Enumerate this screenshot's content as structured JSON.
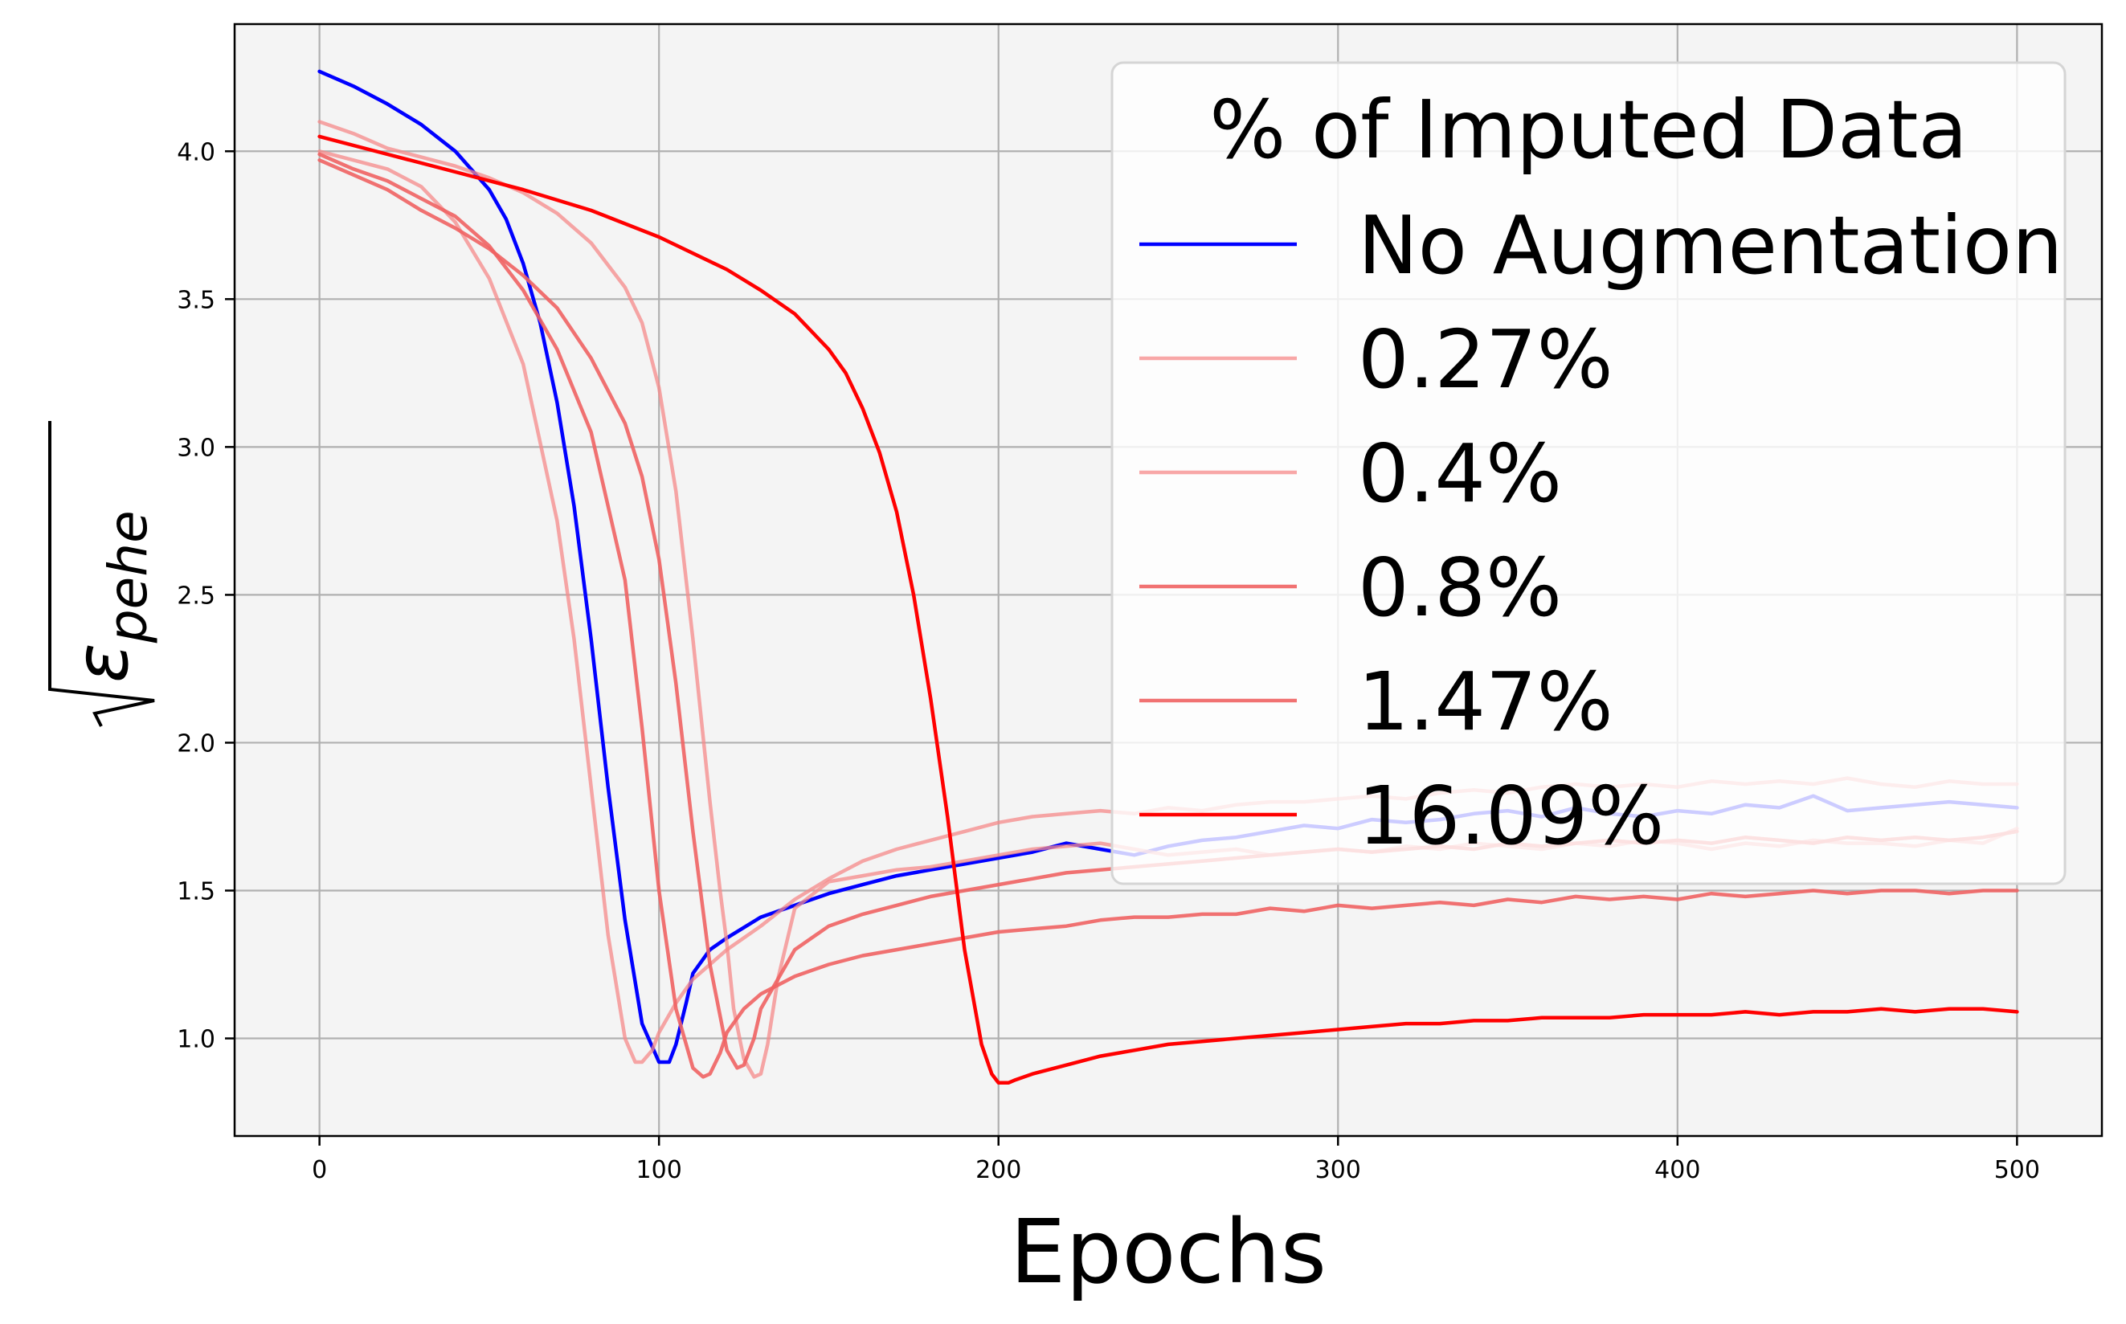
{
  "chart_data": {
    "type": "line",
    "title": "",
    "xlabel": "Epochs",
    "ylabel": "√ε pehe",
    "ylabel_parts": {
      "symbol": "ε",
      "subscript": "pehe"
    },
    "xlim": [
      -25,
      525
    ],
    "ylim": [
      0.67,
      4.43
    ],
    "xticks": [
      0,
      100,
      200,
      300,
      400,
      500
    ],
    "xtick_labels": [
      "0",
      "100",
      "200",
      "300",
      "400",
      "500"
    ],
    "yticks": [
      1.0,
      1.5,
      2.0,
      2.5,
      3.0,
      3.5,
      4.0
    ],
    "ytick_labels": [
      "1.0",
      "1.5",
      "2.0",
      "2.5",
      "3.0",
      "3.5",
      "4.0"
    ],
    "grid": true,
    "legend": {
      "title": "% of Imputed Data",
      "placement": "top-right"
    },
    "background_color": "#f4f4f4",
    "series": [
      {
        "name": "No Augmentation",
        "color": "#0000ff",
        "opacity": 1.0,
        "x": [
          0,
          10,
          20,
          30,
          40,
          50,
          55,
          60,
          65,
          70,
          75,
          80,
          85,
          90,
          95,
          100,
          103,
          105,
          108,
          110,
          115,
          120,
          130,
          140,
          150,
          160,
          170,
          180,
          185,
          190,
          200,
          210,
          220,
          230,
          240,
          250,
          260,
          270,
          280,
          290,
          300,
          310,
          320,
          330,
          340,
          350,
          360,
          370,
          380,
          390,
          400,
          410,
          420,
          430,
          440,
          450,
          460,
          470,
          480,
          490,
          500
        ],
        "y": [
          4.27,
          4.22,
          4.16,
          4.09,
          4.0,
          3.87,
          3.77,
          3.62,
          3.42,
          3.15,
          2.8,
          2.35,
          1.85,
          1.4,
          1.05,
          0.92,
          0.92,
          0.98,
          1.12,
          1.22,
          1.3,
          1.34,
          1.41,
          1.45,
          1.49,
          1.52,
          1.55,
          1.57,
          1.58,
          1.59,
          1.61,
          1.63,
          1.66,
          1.64,
          1.62,
          1.65,
          1.67,
          1.68,
          1.7,
          1.72,
          1.71,
          1.74,
          1.73,
          1.74,
          1.76,
          1.77,
          1.75,
          1.78,
          1.76,
          1.75,
          1.77,
          1.76,
          1.79,
          1.78,
          1.82,
          1.77,
          1.78,
          1.79,
          1.8,
          1.79,
          1.78
        ]
      },
      {
        "name": "0.27%",
        "color": "#f58a8a",
        "opacity": 0.75,
        "x": [
          0,
          10,
          20,
          30,
          40,
          50,
          60,
          70,
          75,
          80,
          85,
          90,
          93,
          95,
          98,
          100,
          105,
          110,
          115,
          120,
          130,
          140,
          150,
          160,
          170,
          180,
          190,
          200,
          210,
          220,
          230,
          240,
          250,
          260,
          270,
          280,
          290,
          300,
          310,
          320,
          330,
          340,
          350,
          360,
          370,
          380,
          390,
          400,
          410,
          420,
          430,
          440,
          450,
          460,
          470,
          480,
          490,
          500
        ],
        "y": [
          4.0,
          3.97,
          3.94,
          3.88,
          3.76,
          3.57,
          3.28,
          2.75,
          2.35,
          1.85,
          1.35,
          1.0,
          0.92,
          0.92,
          0.96,
          1.02,
          1.12,
          1.2,
          1.25,
          1.3,
          1.38,
          1.47,
          1.54,
          1.6,
          1.64,
          1.67,
          1.7,
          1.73,
          1.75,
          1.76,
          1.77,
          1.76,
          1.78,
          1.77,
          1.79,
          1.8,
          1.8,
          1.81,
          1.82,
          1.81,
          1.83,
          1.84,
          1.83,
          1.85,
          1.86,
          1.85,
          1.86,
          1.85,
          1.87,
          1.86,
          1.87,
          1.86,
          1.88,
          1.86,
          1.85,
          1.87,
          1.86,
          1.86
        ]
      },
      {
        "name": "0.4%",
        "color": "#f58a8a",
        "opacity": 0.75,
        "x": [
          0,
          10,
          20,
          30,
          40,
          50,
          60,
          70,
          80,
          90,
          95,
          100,
          105,
          110,
          115,
          118,
          120,
          122,
          125,
          128,
          130,
          132,
          135,
          140,
          150,
          160,
          170,
          180,
          190,
          200,
          210,
          220,
          230,
          240,
          250,
          260,
          270,
          280,
          290,
          300,
          310,
          320,
          330,
          340,
          350,
          360,
          370,
          380,
          390,
          400,
          410,
          420,
          430,
          440,
          450,
          460,
          470,
          480,
          490,
          500
        ],
        "y": [
          4.1,
          4.06,
          4.01,
          3.98,
          3.95,
          3.91,
          3.86,
          3.79,
          3.69,
          3.54,
          3.42,
          3.2,
          2.85,
          2.35,
          1.8,
          1.5,
          1.32,
          1.1,
          0.93,
          0.87,
          0.88,
          0.98,
          1.2,
          1.44,
          1.53,
          1.55,
          1.57,
          1.58,
          1.6,
          1.62,
          1.64,
          1.65,
          1.66,
          1.64,
          1.62,
          1.63,
          1.64,
          1.62,
          1.63,
          1.64,
          1.63,
          1.65,
          1.64,
          1.66,
          1.65,
          1.64,
          1.66,
          1.65,
          1.67,
          1.66,
          1.64,
          1.66,
          1.65,
          1.67,
          1.66,
          1.66,
          1.65,
          1.67,
          1.66,
          1.71
        ]
      },
      {
        "name": "0.8%",
        "color": "#ef6363",
        "opacity": 0.9,
        "x": [
          0,
          10,
          20,
          30,
          40,
          50,
          60,
          70,
          80,
          90,
          95,
          100,
          105,
          110,
          113,
          115,
          118,
          120,
          125,
          130,
          140,
          150,
          160,
          170,
          180,
          190,
          200,
          210,
          220,
          230,
          240,
          250,
          260,
          270,
          280,
          290,
          300,
          310,
          320,
          330,
          340,
          350,
          360,
          370,
          380,
          390,
          400,
          410,
          420,
          430,
          440,
          450,
          460,
          470,
          480,
          490,
          500
        ],
        "y": [
          3.99,
          3.94,
          3.9,
          3.84,
          3.78,
          3.68,
          3.53,
          3.33,
          3.05,
          2.55,
          2.05,
          1.5,
          1.1,
          0.9,
          0.87,
          0.88,
          0.95,
          1.02,
          1.1,
          1.15,
          1.21,
          1.25,
          1.28,
          1.3,
          1.32,
          1.34,
          1.36,
          1.37,
          1.38,
          1.4,
          1.41,
          1.41,
          1.42,
          1.42,
          1.44,
          1.43,
          1.45,
          1.44,
          1.45,
          1.46,
          1.45,
          1.47,
          1.46,
          1.48,
          1.47,
          1.48,
          1.47,
          1.49,
          1.48,
          1.49,
          1.5,
          1.49,
          1.5,
          1.5,
          1.49,
          1.5,
          1.5
        ]
      },
      {
        "name": "1.47%",
        "color": "#ef6363",
        "opacity": 0.9,
        "x": [
          0,
          10,
          20,
          30,
          40,
          50,
          60,
          70,
          80,
          90,
          95,
          100,
          105,
          110,
          115,
          120,
          123,
          125,
          128,
          130,
          135,
          140,
          150,
          160,
          170,
          180,
          190,
          200,
          210,
          220,
          230,
          240,
          250,
          260,
          270,
          280,
          290,
          300,
          310,
          320,
          330,
          340,
          350,
          360,
          370,
          380,
          390,
          400,
          410,
          420,
          430,
          440,
          450,
          460,
          470,
          480,
          490,
          500
        ],
        "y": [
          3.97,
          3.92,
          3.87,
          3.8,
          3.74,
          3.67,
          3.58,
          3.47,
          3.3,
          3.08,
          2.9,
          2.62,
          2.2,
          1.7,
          1.25,
          0.96,
          0.9,
          0.91,
          1.0,
          1.1,
          1.2,
          1.3,
          1.38,
          1.42,
          1.45,
          1.48,
          1.5,
          1.52,
          1.54,
          1.56,
          1.57,
          1.58,
          1.59,
          1.6,
          1.61,
          1.62,
          1.63,
          1.64,
          1.63,
          1.64,
          1.65,
          1.64,
          1.66,
          1.65,
          1.66,
          1.67,
          1.66,
          1.67,
          1.66,
          1.68,
          1.67,
          1.66,
          1.68,
          1.67,
          1.68,
          1.67,
          1.68,
          1.7
        ]
      },
      {
        "name": "16.09%",
        "color": "#ff0000",
        "opacity": 1.0,
        "x": [
          0,
          20,
          40,
          60,
          80,
          100,
          120,
          130,
          140,
          150,
          155,
          160,
          165,
          170,
          175,
          180,
          185,
          190,
          195,
          198,
          200,
          203,
          205,
          210,
          220,
          230,
          240,
          250,
          260,
          270,
          280,
          290,
          300,
          310,
          320,
          330,
          340,
          350,
          360,
          370,
          380,
          390,
          400,
          410,
          420,
          430,
          440,
          450,
          460,
          470,
          480,
          490,
          500
        ],
        "y": [
          4.05,
          3.99,
          3.93,
          3.87,
          3.8,
          3.71,
          3.6,
          3.53,
          3.45,
          3.33,
          3.25,
          3.13,
          2.98,
          2.78,
          2.5,
          2.15,
          1.75,
          1.3,
          0.98,
          0.88,
          0.85,
          0.85,
          0.86,
          0.88,
          0.91,
          0.94,
          0.96,
          0.98,
          0.99,
          1.0,
          1.01,
          1.02,
          1.03,
          1.04,
          1.05,
          1.05,
          1.06,
          1.06,
          1.07,
          1.07,
          1.07,
          1.08,
          1.08,
          1.08,
          1.09,
          1.08,
          1.09,
          1.09,
          1.1,
          1.09,
          1.1,
          1.1,
          1.09
        ]
      }
    ]
  }
}
